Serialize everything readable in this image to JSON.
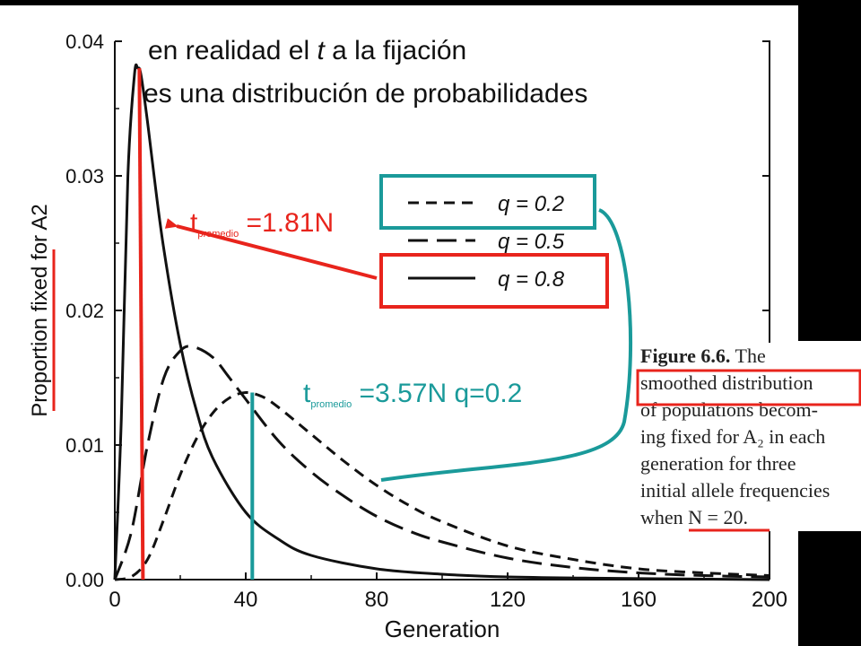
{
  "annotations": {
    "title_line1_pre": "en realidad el ",
    "title_line1_t": "t",
    "title_line1_post": " a la fijación",
    "title_line2": "es una distribución de probabilidades",
    "t_symbol_a": "t",
    "sub_a": "promedio",
    "value_a": " =1.81N",
    "t_symbol_b": "t",
    "sub_b": "promedio",
    "value_b": " =3.57N q=0.2"
  },
  "caption": {
    "figure_label": "Figure 6.6.",
    "line1_rest": " The",
    "line2": "smoothed distribution",
    "line3": "of populations becom-",
    "line4": "ing fixed for A₂ in each",
    "line5": "generation for three",
    "line6": "initial allele frequencies",
    "line7": "when N = 20."
  },
  "colors": {
    "red": "#e8241c",
    "teal": "#1a9a9a",
    "ink": "#111111"
  },
  "chart_data": {
    "type": "line",
    "xlabel": "Generation",
    "ylabel": "Proportion fixed for A2",
    "xlim": [
      0,
      200
    ],
    "ylim": [
      0,
      0.04
    ],
    "xticks": [
      0,
      40,
      80,
      120,
      160,
      200
    ],
    "xtick_labels": [
      "0",
      "40",
      "80",
      "120",
      "160",
      "200"
    ],
    "yticks": [
      0,
      0.01,
      0.02,
      0.03,
      0.04
    ],
    "ytick_labels": [
      "0.00",
      "0.01",
      "0.02",
      "0.03",
      "0.04"
    ],
    "legend_placement": "upper-right",
    "grid": false,
    "series": [
      {
        "name": "q = 0.2",
        "dash": "short-dash",
        "x": [
          0,
          5,
          10,
          15,
          20,
          25,
          30,
          35,
          40,
          45,
          50,
          60,
          70,
          80,
          90,
          100,
          120,
          140,
          160,
          180,
          200
        ],
        "y": [
          0,
          0.0002,
          0.0015,
          0.0045,
          0.0078,
          0.0105,
          0.0124,
          0.0135,
          0.0139,
          0.0136,
          0.0128,
          0.0108,
          0.0088,
          0.007,
          0.0055,
          0.0043,
          0.0025,
          0.0015,
          0.0008,
          0.0005,
          0.0003
        ]
      },
      {
        "name": "q = 0.5",
        "dash": "long-dash",
        "x": [
          0,
          5,
          10,
          15,
          20,
          24,
          30,
          35,
          40,
          50,
          60,
          70,
          80,
          90,
          100,
          120,
          140,
          160,
          180,
          200
        ],
        "y": [
          0,
          0.0035,
          0.01,
          0.015,
          0.017,
          0.0173,
          0.0165,
          0.015,
          0.0134,
          0.0103,
          0.008,
          0.0062,
          0.0047,
          0.0036,
          0.0028,
          0.0016,
          0.0009,
          0.0005,
          0.0003,
          0.0002
        ]
      },
      {
        "name": "q = 0.8",
        "dash": "solid",
        "x": [
          0,
          2,
          4,
          6,
          7,
          8,
          10,
          12,
          15,
          20,
          25,
          30,
          40,
          50,
          60,
          80,
          100,
          120,
          150,
          200
        ],
        "y": [
          0,
          0.012,
          0.03,
          0.0375,
          0.038,
          0.0375,
          0.034,
          0.03,
          0.0245,
          0.0175,
          0.0125,
          0.009,
          0.005,
          0.003,
          0.0018,
          0.0008,
          0.0004,
          0.0002,
          0.0001,
          0.0
        ]
      }
    ],
    "markers": [
      {
        "label": "t promedio =1.81N",
        "x": 7.5,
        "y_top": 0.038,
        "color": "red"
      },
      {
        "label": "t promedio =3.57N q=0.2",
        "x": 42,
        "y_top": 0.0139,
        "color": "teal"
      }
    ]
  }
}
